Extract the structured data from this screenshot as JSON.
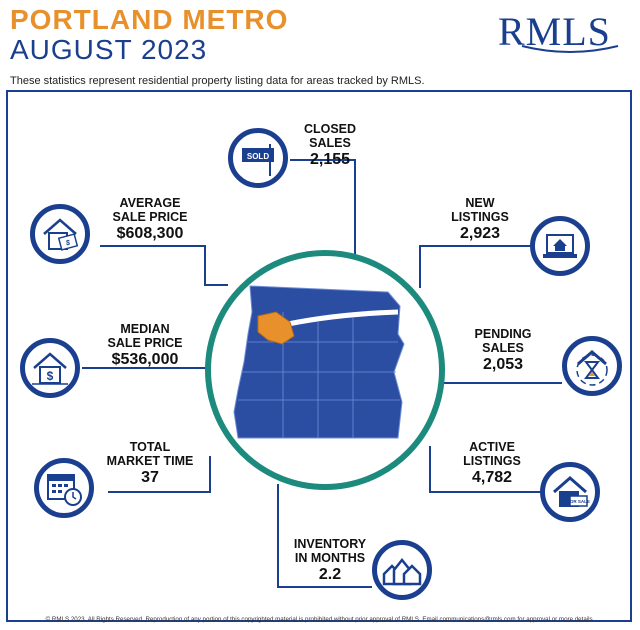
{
  "header": {
    "title_line1": "PORTLAND METRO",
    "title_line2": "AUGUST 2023",
    "subtitle": "These statistics represent residential property listing data for areas tracked by RMLS.",
    "logo_text": "RMLS"
  },
  "colors": {
    "orange": "#e8912c",
    "navy": "#1b3f8f",
    "teal": "#1d8a7e",
    "map_fill": "#2b4ea3",
    "highlight": "#e8912c"
  },
  "stats": {
    "closed_sales": {
      "label1": "CLOSED",
      "label2": "SALES",
      "value": "2,155",
      "icon": "sold-sign-icon",
      "sign_text": "SOLD"
    },
    "new_listings": {
      "label1": "NEW",
      "label2": "LISTINGS",
      "value": "2,923",
      "icon": "laptop-house-icon"
    },
    "pending_sales": {
      "label1": "PENDING",
      "label2": "SALES",
      "value": "2,053",
      "icon": "hourglass-house-icon"
    },
    "active_listings": {
      "label1": "ACTIVE",
      "label2": "LISTINGS",
      "value": "4,782",
      "icon": "for-sale-house-icon",
      "sign_text": "FOR SALE"
    },
    "inventory": {
      "label1": "INVENTORY",
      "label2": "IN MONTHS",
      "value": "2.2",
      "icon": "houses-icon"
    },
    "market_time": {
      "label1": "TOTAL",
      "label2": "MARKET TIME",
      "value": "37",
      "icon": "calendar-clock-icon"
    },
    "median_price": {
      "label1": "MEDIAN",
      "label2": "SALE PRICE",
      "value": "$536,000",
      "icon": "house-dollar-icon"
    },
    "average_price": {
      "label1": "AVERAGE",
      "label2": "SALE PRICE",
      "value": "$608,300",
      "icon": "house-money-icon"
    }
  },
  "footer": "© RMLS 2023. All Rights Reserved. Reproduction of any portion of this copyrighted material is prohibited without prior approval of RMLS. Email communications@rmls.com for approval or more details."
}
